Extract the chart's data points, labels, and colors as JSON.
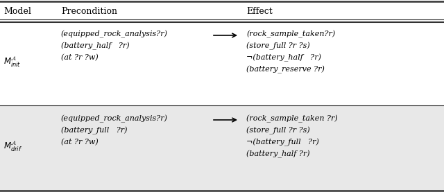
{
  "figsize": [
    6.4,
    2.77
  ],
  "dpi": 100,
  "bg_color": "#f2f2f2",
  "header_bg": "#ffffff",
  "row1_bg": "#ffffff",
  "row2_bg": "#e8e8e8",
  "header": {
    "col1": "Model",
    "col2": "Precondition",
    "col3": "Effect"
  },
  "row1": {
    "model_label": "$M^{\\mathcal{A}}_{init}$",
    "precond": [
      "(equipped_rock_analysis?r)",
      "(battery_half   ?r)",
      "(at ?r ?w)"
    ],
    "effect": [
      "(rock_sample_taken?r)",
      "(store_full ?r ?s)",
      "¬(battery_half   ?r)",
      "(battery_reserve ?r)"
    ]
  },
  "row2": {
    "model_label": "$M^{\\mathcal{A}}_{drif}$",
    "precond": [
      "(equipped_rock_analysis?r)",
      "(battery_full   ?r)",
      "(at ?r ?w)"
    ],
    "effect": [
      "(rock_sample_taken ?r)",
      "(store_full ?r ?s)",
      "¬(battery_full   ?r)",
      "(battery_half ?r)"
    ]
  },
  "font_size": 8.0,
  "header_font_size": 9.0,
  "line_color": "#333333"
}
